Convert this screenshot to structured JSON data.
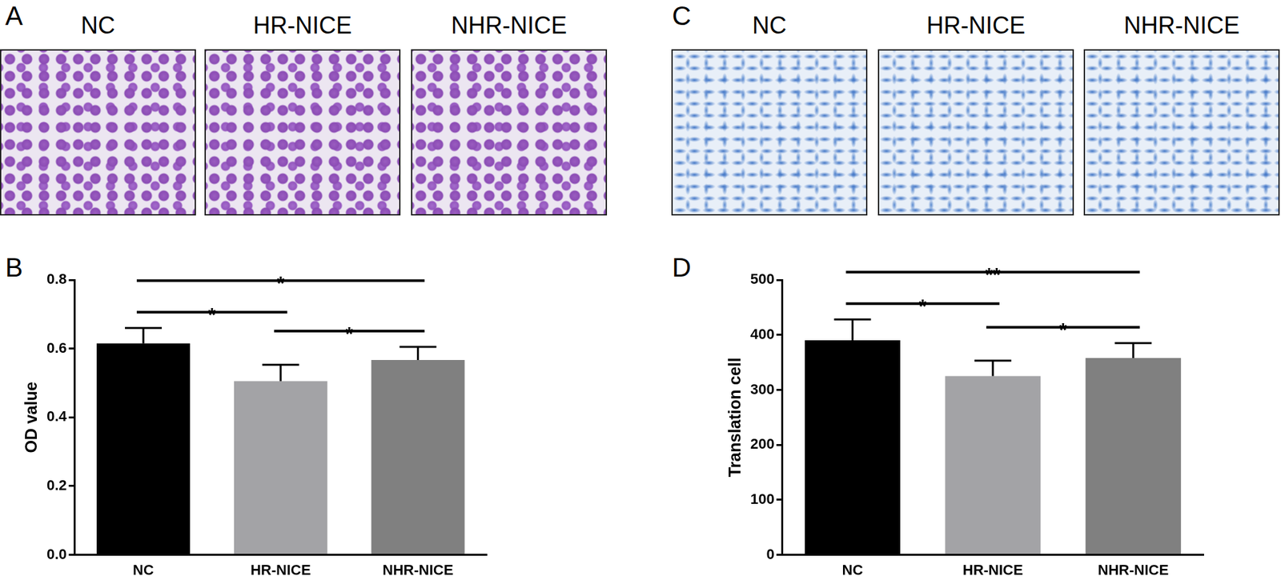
{
  "image_panels": [
    {
      "panel": "A",
      "titles": [
        "NC",
        "HR-NICE",
        "NHR-NICE"
      ],
      "color": "#8c4db5"
    },
    {
      "panel": "C",
      "titles": [
        "NC",
        "HR-NICE",
        "NHR-NICE"
      ],
      "color": "#3f74c6"
    }
  ],
  "chart_data": [
    {
      "panel": "B",
      "type": "bar",
      "categories": [
        "NC",
        "HR-NICE",
        "NHR-NICE"
      ],
      "values": [
        0.615,
        0.505,
        0.567
      ],
      "errors": [
        0.045,
        0.048,
        0.038
      ],
      "colors": [
        "#000000",
        "#a3a3a6",
        "#808080"
      ],
      "ylabel": "OD value",
      "ylim": [
        0,
        0.8
      ],
      "yticks": [
        {
          "value": 0,
          "label": "0.0"
        },
        0.2,
        0.4,
        0.6,
        0.8
      ],
      "grid": false,
      "annotations": [
        {
          "from": "NC",
          "to": "HR-NICE",
          "text": "*"
        },
        {
          "from": "HR-NICE",
          "to": "NHR-NICE",
          "text": "*"
        },
        {
          "from": "NC",
          "to": "NHR-NICE",
          "text": "*"
        }
      ]
    },
    {
      "panel": "D",
      "type": "bar",
      "categories": [
        "NC",
        "HR-NICE",
        "NHR-NICE"
      ],
      "values": [
        390,
        325,
        358
      ],
      "errors": [
        38,
        28,
        27
      ],
      "colors": [
        "#000000",
        "#a3a3a6",
        "#808080"
      ],
      "ylabel": "Translation cell",
      "ylim": [
        0,
        500
      ],
      "yticks": [
        0,
        100,
        200,
        300,
        400,
        500
      ],
      "grid": false,
      "annotations": [
        {
          "from": "NC",
          "to": "HR-NICE",
          "text": "*"
        },
        {
          "from": "HR-NICE",
          "to": "NHR-NICE",
          "text": "*"
        },
        {
          "from": "NC",
          "to": "NHR-NICE",
          "text": "**"
        }
      ]
    }
  ]
}
